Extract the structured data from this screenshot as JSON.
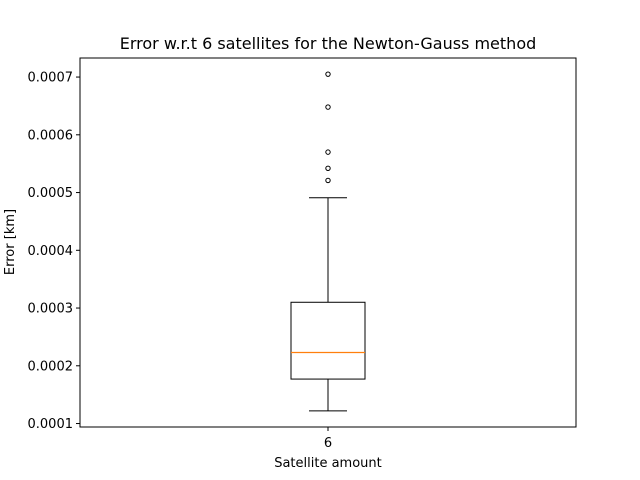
{
  "chart_data": {
    "type": "box",
    "title": "Error w.r.t 6 satellites for the Newton-Gauss method",
    "xlabel": "Satellite amount",
    "ylabel": "Error [km]",
    "categories": [
      "6"
    ],
    "ylim": [
      9.4e-05,
      0.000733
    ],
    "yticks": [
      0.0001,
      0.0002,
      0.0003,
      0.0004,
      0.0005,
      0.0006,
      0.0007
    ],
    "ytick_labels": [
      "0.0001",
      "0.0002",
      "0.0003",
      "0.0004",
      "0.0005",
      "0.0006",
      "0.0007"
    ],
    "boxes": [
      {
        "category": "6",
        "whisker_low": 0.000122,
        "q1": 0.000177,
        "median": 0.000223,
        "q3": 0.00031,
        "whisker_high": 0.000491,
        "outliers": [
          0.000521,
          0.000542,
          0.00057,
          0.000648,
          0.000705
        ]
      }
    ],
    "grid": false,
    "colors": {
      "box": "#000000",
      "median": "#ff7f0e",
      "outlier": "#000000"
    }
  }
}
